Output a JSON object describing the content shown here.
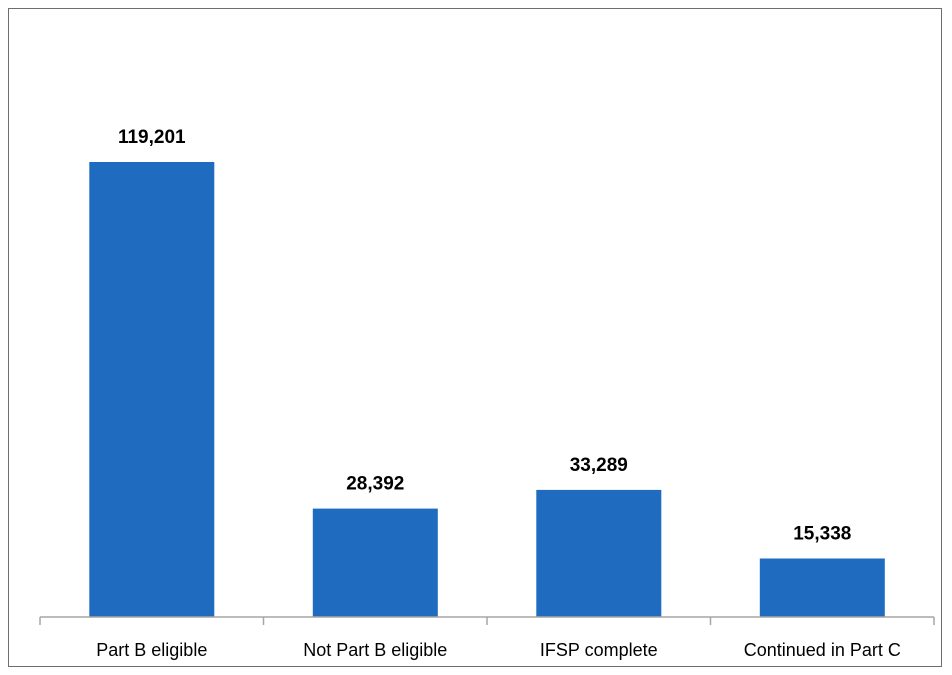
{
  "chart_data": {
    "type": "bar",
    "categories": [
      "Part B eligible",
      "Not Part B eligible",
      "IFSP complete",
      "Continued in Part C"
    ],
    "values": [
      119201,
      28392,
      33289,
      15338
    ],
    "data_labels": [
      "119,201",
      "28,392",
      "33,289",
      "15,338"
    ],
    "title": "",
    "xlabel": "",
    "ylabel": "",
    "ylim": [
      0,
      131000
    ],
    "grid": false,
    "legend": "none",
    "bar_color": "#1F6BBF",
    "axis_color": "#A6A6A6"
  }
}
